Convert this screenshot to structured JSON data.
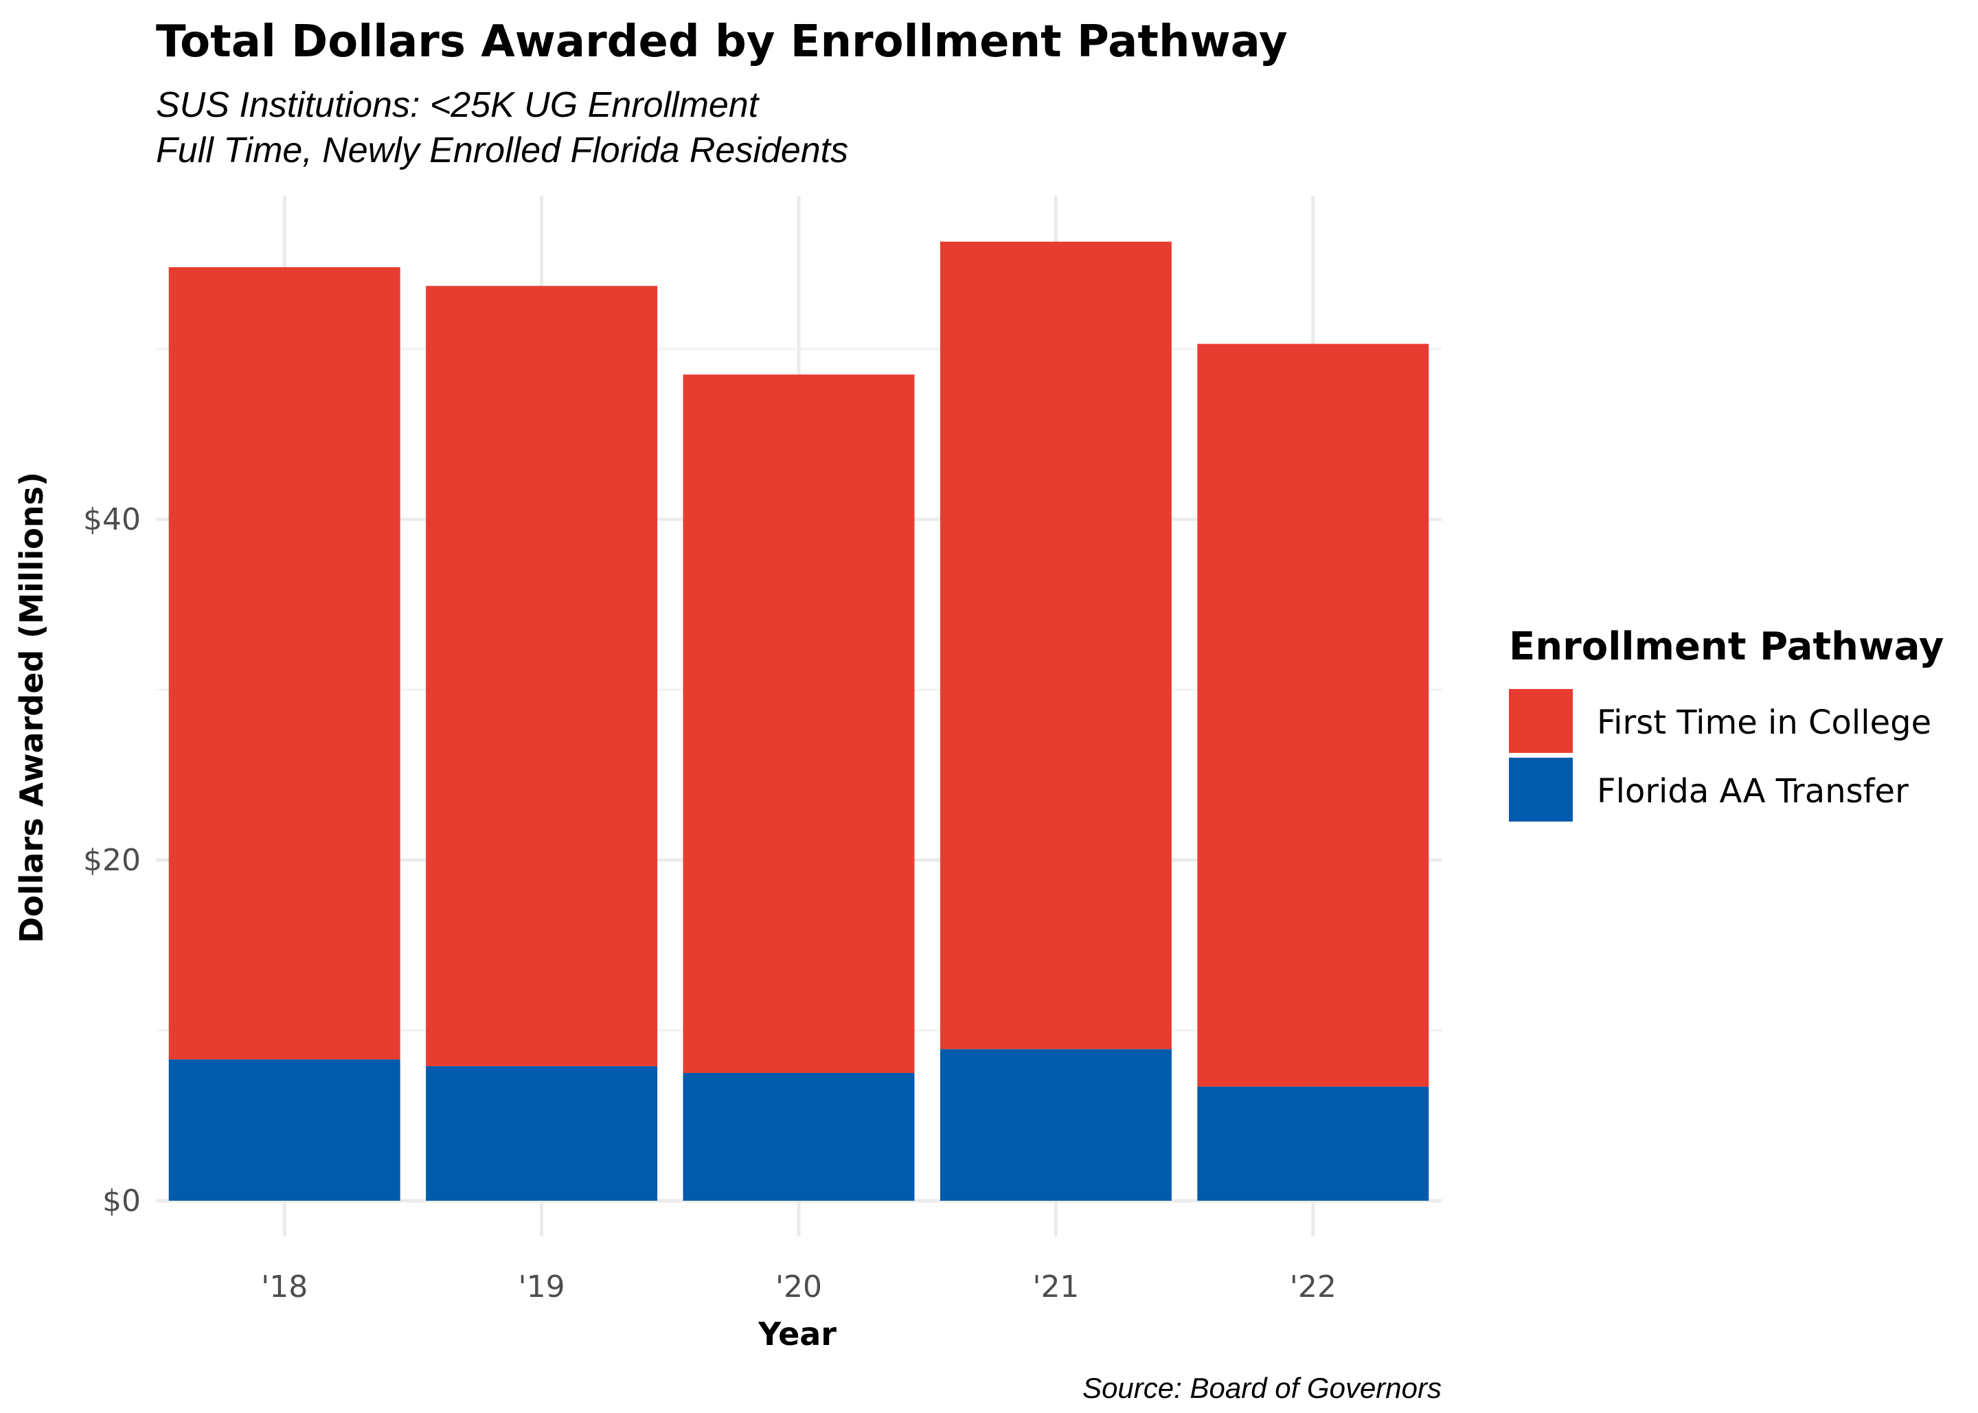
{
  "chart_data": {
    "type": "bar",
    "stacked": true,
    "title": "Total Dollars Awarded by Enrollment Pathway",
    "subtitle_lines": [
      "SUS Institutions: <25K UG Enrollment",
      "Full Time, Newly Enrolled Florida Residents"
    ],
    "xlabel": "Year",
    "ylabel": "Dollars Awarded (Millions)",
    "caption": "Source: Board of Governors",
    "categories": [
      "'18",
      "'19",
      "'20",
      "'21",
      "'22"
    ],
    "series": [
      {
        "name": "Florida AA Transfer",
        "color": "#005BAC",
        "values": [
          8.3,
          7.9,
          7.5,
          8.9,
          6.7
        ]
      },
      {
        "name": "First Time in College",
        "color": "#E73D30",
        "values": [
          46.5,
          45.8,
          41.0,
          47.4,
          43.6
        ]
      }
    ],
    "totals": [
      54.8,
      53.7,
      48.5,
      56.3,
      50.3
    ],
    "ylim": [
      0,
      59
    ],
    "yticks": [
      0,
      20,
      40
    ],
    "ytick_labels": [
      "$0",
      "$20",
      "$40"
    ],
    "y_minor_ticks": [
      10,
      30,
      50
    ],
    "grid": true,
    "legend": {
      "title": "Enrollment Pathway",
      "placement": "right",
      "entries": [
        {
          "label": "First Time in College",
          "color": "#E73D30"
        },
        {
          "label": "Florida AA Transfer",
          "color": "#005BAC"
        }
      ]
    }
  }
}
